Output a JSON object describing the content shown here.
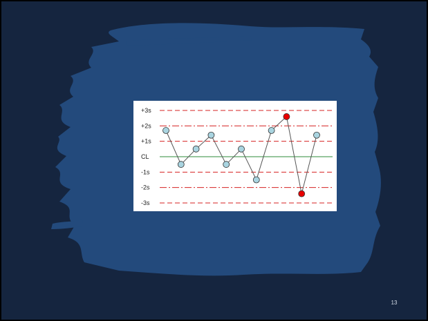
{
  "slide": {
    "page_number": "13",
    "colors": {
      "background": "#15253f",
      "brush": "#234a7c",
      "card": "#ffffff"
    }
  },
  "chart_data": {
    "type": "line",
    "title": "",
    "xlabel": "",
    "ylabel": "",
    "ylim": [
      -3,
      3
    ],
    "grid": false,
    "control_lines": [
      {
        "label": "+3s",
        "value": 3,
        "style": "dashed",
        "color": "#d62020"
      },
      {
        "label": "+2s",
        "value": 2,
        "style": "dashdot",
        "color": "#d62020"
      },
      {
        "label": "+1s",
        "value": 1,
        "style": "dashed",
        "color": "#d62020"
      },
      {
        "label": "CL",
        "value": 0,
        "style": "solid",
        "color": "#2e8b3a"
      },
      {
        "label": "-1s",
        "value": -1,
        "style": "dashed",
        "color": "#d62020"
      },
      {
        "label": "-2s",
        "value": -2,
        "style": "dashdot",
        "color": "#d62020"
      },
      {
        "label": "-3s",
        "value": -3,
        "style": "dashed",
        "color": "#d62020"
      }
    ],
    "series": [
      {
        "x": [
          1,
          2,
          3,
          4,
          5,
          6,
          7,
          8,
          9,
          10,
          11
        ],
        "values": [
          1.7,
          -0.5,
          0.5,
          1.4,
          -0.5,
          0.5,
          -1.5,
          1.7,
          2.6,
          -2.4,
          1.4
        ],
        "point_colors": [
          "#a9d4e0",
          "#a9d4e0",
          "#a9d4e0",
          "#a9d4e0",
          "#a9d4e0",
          "#a9d4e0",
          "#a9d4e0",
          "#a9d4e0",
          "#e80000",
          "#e80000",
          "#a9d4e0"
        ]
      }
    ]
  }
}
